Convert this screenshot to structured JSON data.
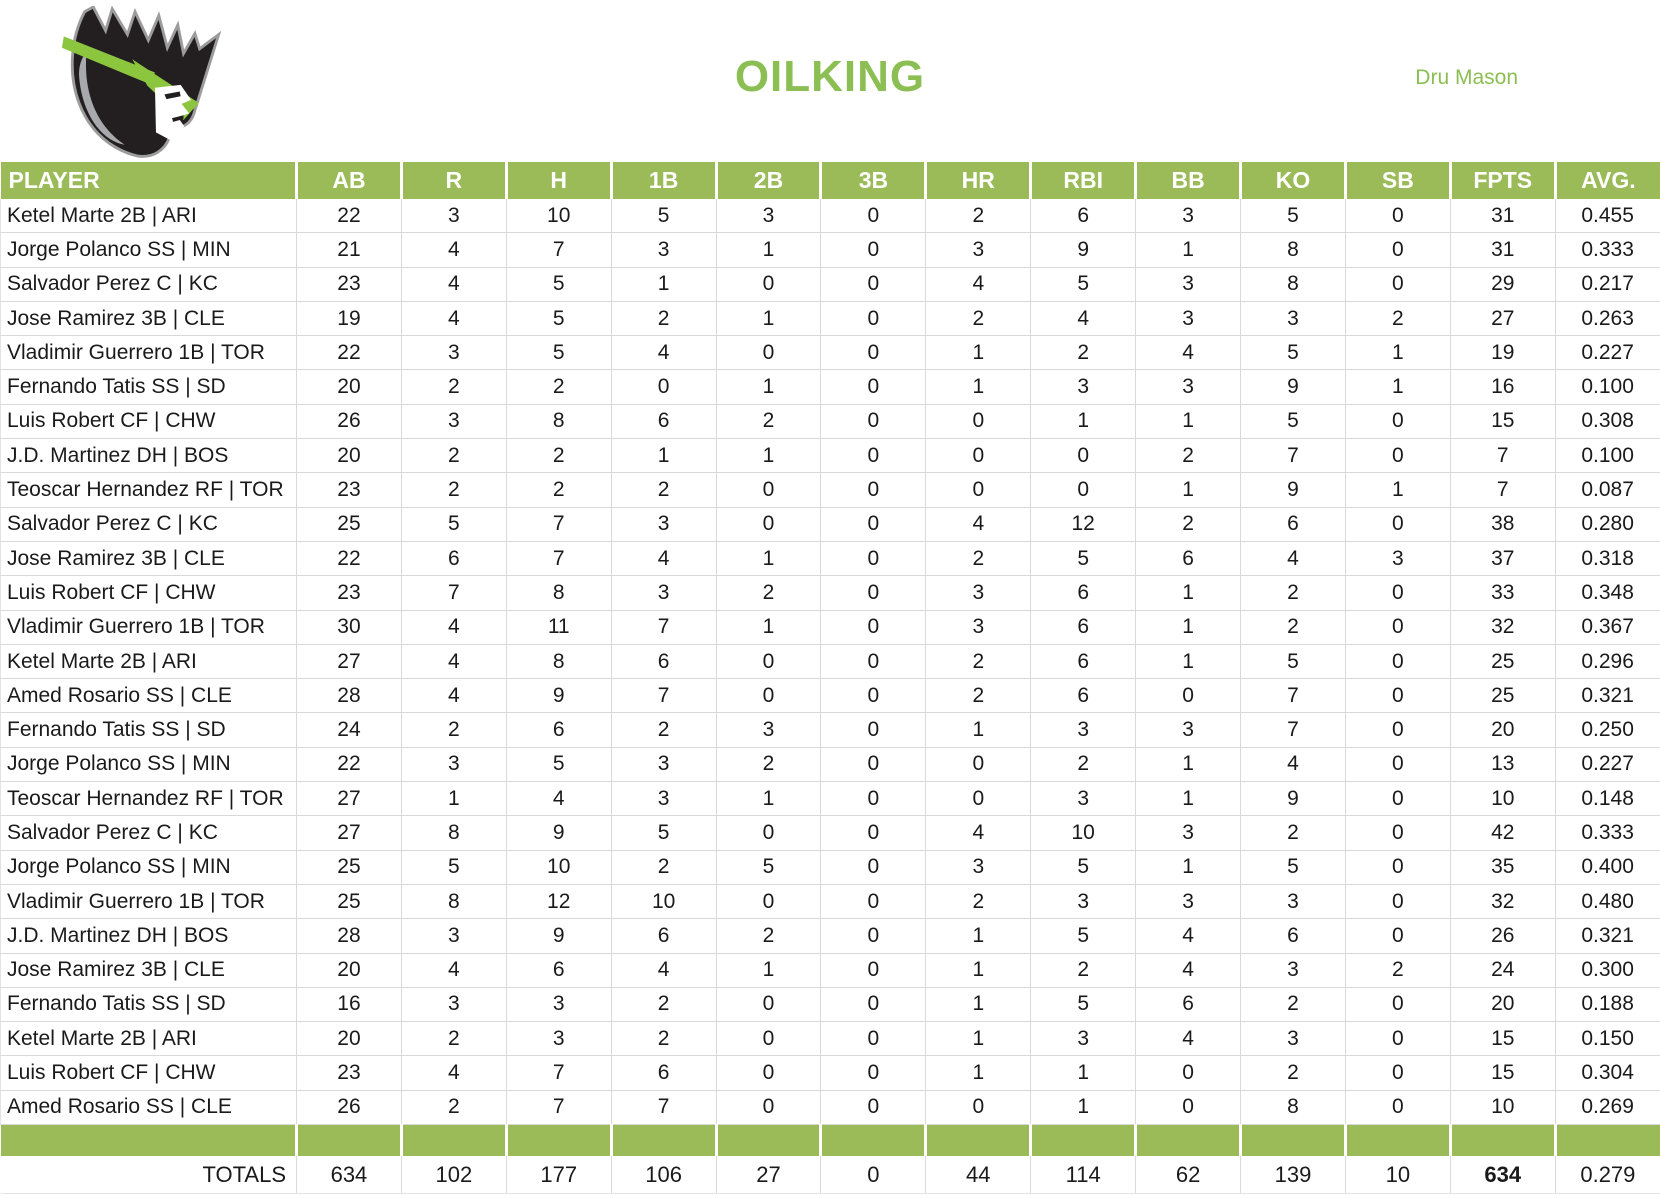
{
  "header": {
    "team_name": "OILKING",
    "owner_name": "Dru Mason",
    "logo": "king-head-logo"
  },
  "colors": {
    "accent_green": "#9BBB59",
    "title_green": "#8CBF53",
    "logo_green": "#8CC63F",
    "logo_black": "#231F20",
    "logo_gray": "#A7A9AC",
    "grid_line": "#D9D9D9",
    "header_text": "#FFFFFF"
  },
  "table": {
    "columns": [
      "PLAYER",
      "AB",
      "R",
      "H",
      "1B",
      "2B",
      "3B",
      "HR",
      "RBI",
      "BB",
      "KO",
      "SB",
      "FPTS",
      "AVG."
    ],
    "rows": [
      [
        "Ketel Marte 2B | ARI",
        22,
        3,
        10,
        5,
        3,
        0,
        2,
        6,
        3,
        5,
        0,
        31,
        "0.455"
      ],
      [
        "Jorge Polanco SS | MIN",
        21,
        4,
        7,
        3,
        1,
        0,
        3,
        9,
        1,
        8,
        0,
        31,
        "0.333"
      ],
      [
        "Salvador Perez C | KC",
        23,
        4,
        5,
        1,
        0,
        0,
        4,
        5,
        3,
        8,
        0,
        29,
        "0.217"
      ],
      [
        "Jose Ramirez 3B | CLE",
        19,
        4,
        5,
        2,
        1,
        0,
        2,
        4,
        3,
        3,
        2,
        27,
        "0.263"
      ],
      [
        "Vladimir Guerrero 1B | TOR",
        22,
        3,
        5,
        4,
        0,
        0,
        1,
        2,
        4,
        5,
        1,
        19,
        "0.227"
      ],
      [
        "Fernando Tatis SS | SD",
        20,
        2,
        2,
        0,
        1,
        0,
        1,
        3,
        3,
        9,
        1,
        16,
        "0.100"
      ],
      [
        "Luis Robert CF | CHW",
        26,
        3,
        8,
        6,
        2,
        0,
        0,
        1,
        1,
        5,
        0,
        15,
        "0.308"
      ],
      [
        "J.D. Martinez DH | BOS",
        20,
        2,
        2,
        1,
        1,
        0,
        0,
        0,
        2,
        7,
        0,
        7,
        "0.100"
      ],
      [
        "Teoscar Hernandez RF | TOR",
        23,
        2,
        2,
        2,
        0,
        0,
        0,
        0,
        1,
        9,
        1,
        7,
        "0.087"
      ],
      [
        "Salvador Perez C | KC",
        25,
        5,
        7,
        3,
        0,
        0,
        4,
        12,
        2,
        6,
        0,
        38,
        "0.280"
      ],
      [
        "Jose Ramirez 3B | CLE",
        22,
        6,
        7,
        4,
        1,
        0,
        2,
        5,
        6,
        4,
        3,
        37,
        "0.318"
      ],
      [
        "Luis Robert CF | CHW",
        23,
        7,
        8,
        3,
        2,
        0,
        3,
        6,
        1,
        2,
        0,
        33,
        "0.348"
      ],
      [
        "Vladimir Guerrero 1B | TOR",
        30,
        4,
        11,
        7,
        1,
        0,
        3,
        6,
        1,
        2,
        0,
        32,
        "0.367"
      ],
      [
        "Ketel Marte 2B | ARI",
        27,
        4,
        8,
        6,
        0,
        0,
        2,
        6,
        1,
        5,
        0,
        25,
        "0.296"
      ],
      [
        "Amed Rosario SS | CLE",
        28,
        4,
        9,
        7,
        0,
        0,
        2,
        6,
        0,
        7,
        0,
        25,
        "0.321"
      ],
      [
        "Fernando Tatis SS | SD",
        24,
        2,
        6,
        2,
        3,
        0,
        1,
        3,
        3,
        7,
        0,
        20,
        "0.250"
      ],
      [
        "Jorge Polanco SS | MIN",
        22,
        3,
        5,
        3,
        2,
        0,
        0,
        2,
        1,
        4,
        0,
        13,
        "0.227"
      ],
      [
        "Teoscar Hernandez RF | TOR",
        27,
        1,
        4,
        3,
        1,
        0,
        0,
        3,
        1,
        9,
        0,
        10,
        "0.148"
      ],
      [
        "Salvador Perez C | KC",
        27,
        8,
        9,
        5,
        0,
        0,
        4,
        10,
        3,
        2,
        0,
        42,
        "0.333"
      ],
      [
        "Jorge Polanco SS | MIN",
        25,
        5,
        10,
        2,
        5,
        0,
        3,
        5,
        1,
        5,
        0,
        35,
        "0.400"
      ],
      [
        "Vladimir Guerrero 1B | TOR",
        25,
        8,
        12,
        10,
        0,
        0,
        2,
        3,
        3,
        3,
        0,
        32,
        "0.480"
      ],
      [
        "J.D. Martinez DH | BOS",
        28,
        3,
        9,
        6,
        2,
        0,
        1,
        5,
        4,
        6,
        0,
        26,
        "0.321"
      ],
      [
        "Jose Ramirez 3B | CLE",
        20,
        4,
        6,
        4,
        1,
        0,
        1,
        2,
        4,
        3,
        2,
        24,
        "0.300"
      ],
      [
        "Fernando Tatis SS | SD",
        16,
        3,
        3,
        2,
        0,
        0,
        1,
        5,
        6,
        2,
        0,
        20,
        "0.188"
      ],
      [
        "Ketel Marte 2B | ARI",
        20,
        2,
        3,
        2,
        0,
        0,
        1,
        3,
        4,
        3,
        0,
        15,
        "0.150"
      ],
      [
        "Luis Robert CF | CHW",
        23,
        4,
        7,
        6,
        0,
        0,
        1,
        1,
        0,
        2,
        0,
        15,
        "0.304"
      ],
      [
        "Amed Rosario SS | CLE",
        26,
        2,
        7,
        7,
        0,
        0,
        0,
        1,
        0,
        8,
        0,
        10,
        "0.269"
      ]
    ],
    "totals": {
      "label": "TOTALS",
      "values": [
        634,
        102,
        177,
        106,
        27,
        0,
        44,
        114,
        62,
        139,
        10,
        634,
        "0.279"
      ]
    }
  }
}
